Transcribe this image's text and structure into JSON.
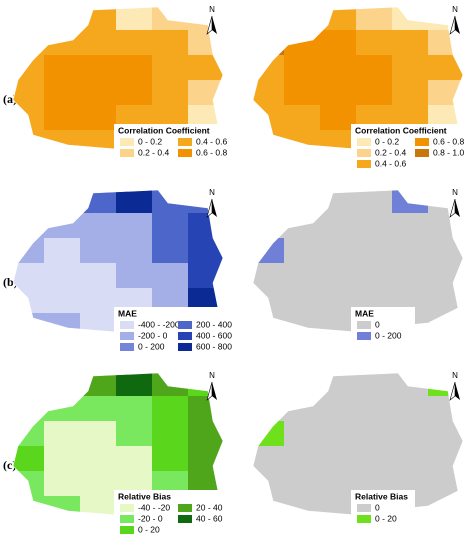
{
  "north": "N",
  "rows": [
    {
      "label": "(a)",
      "panels": [
        {
          "legend": {
            "title": "Correlation Coefficient",
            "items": [
              {
                "label": "0 - 0.2",
                "color": "#fde9b5"
              },
              {
                "label": "0.4 - 0.6",
                "color": "#f5a81e"
              },
              {
                "label": "0.2 - 0.4",
                "color": "#fbd38a"
              },
              {
                "label": "0.6 - 0.8",
                "color": "#f39200"
              }
            ]
          },
          "cells": [
            [
              1,
              1,
              1,
              0,
              2,
              2
            ],
            [
              1,
              1,
              1,
              1,
              1,
              2
            ],
            [
              1,
              3,
              3,
              3,
              1,
              1
            ],
            [
              1,
              3,
              3,
              3,
              1,
              2
            ],
            [
              1,
              3,
              3,
              1,
              1,
              0
            ],
            [
              1,
              1,
              1,
              1,
              1,
              1
            ]
          ]
        },
        {
          "legend": {
            "title": "Correlation Coefficient",
            "items": [
              {
                "label": "0 - 0.2",
                "color": "#fde9b5"
              },
              {
                "label": "0.6 - 0.8",
                "color": "#f39200"
              },
              {
                "label": "0.2 - 0.4",
                "color": "#fbd38a"
              },
              {
                "label": "0.8 - 1.0",
                "color": "#c8780a"
              },
              {
                "label": "0.4 - 0.6",
                "color": "#f5a81e"
              }
            ]
          },
          "cells": [
            [
              4,
              4,
              4,
              2,
              0,
              0
            ],
            [
              3,
              1,
              1,
              4,
              4,
              2
            ],
            [
              4,
              1,
              1,
              1,
              4,
              4
            ],
            [
              4,
              1,
              1,
              1,
              4,
              2
            ],
            [
              4,
              4,
              1,
              4,
              4,
              0
            ],
            [
              4,
              4,
              4,
              4,
              4,
              4
            ]
          ]
        }
      ]
    },
    {
      "label": "(b)",
      "panels": [
        {
          "legend": {
            "title": "MAE",
            "items": [
              {
                "label": "-400 - -200",
                "color": "#d8dcf5"
              },
              {
                "label": "200 - 400",
                "color": "#4d66c9"
              },
              {
                "label": "-200 - 0",
                "color": "#a3afe6"
              },
              {
                "label": "400 - 600",
                "color": "#2644b3"
              },
              {
                "label": "0 - 200",
                "color": "#7586d8"
              },
              {
                "label": "600 - 800",
                "color": "#0c2a94"
              }
            ]
          },
          "cells": [
            [
              4,
              4,
              1,
              5,
              1,
              1
            ],
            [
              2,
              2,
              2,
              2,
              1,
              3
            ],
            [
              2,
              0,
              2,
              2,
              1,
              3
            ],
            [
              0,
              0,
              0,
              2,
              2,
              3
            ],
            [
              0,
              0,
              0,
              0,
              2,
              5
            ],
            [
              2,
              2,
              0,
              0,
              2,
              5
            ]
          ]
        },
        {
          "legend": {
            "title": "MAE",
            "items": [
              {
                "label": "0",
                "color": "#cccccc"
              },
              {
                "label": "0 - 200",
                "color": "#6f80d6"
              }
            ]
          },
          "cells": [
            [
              0,
              0,
              0,
              0,
              1,
              0
            ],
            [
              0,
              0,
              0,
              0,
              0,
              0
            ],
            [
              1,
              0,
              0,
              0,
              0,
              0
            ],
            [
              0,
              0,
              0,
              0,
              0,
              0
            ],
            [
              0,
              0,
              0,
              0,
              0,
              0
            ],
            [
              0,
              0,
              0,
              0,
              0,
              0
            ]
          ]
        }
      ]
    },
    {
      "label": "(c)",
      "panels": [
        {
          "legend": {
            "title": "Relative Bias",
            "items": [
              {
                "label": "-40 - -20",
                "color": "#e6f8c6"
              },
              {
                "label": "20 - 40",
                "color": "#4fa61a"
              },
              {
                "label": "-20 - 0",
                "color": "#7ae85e"
              },
              {
                "label": "40 - 60",
                "color": "#0f6a0f"
              },
              {
                "label": "0 - 20",
                "color": "#5ad61c"
              }
            ]
          },
          "cells": [
            [
              4,
              4,
              1,
              3,
              1,
              4
            ],
            [
              2,
              2,
              2,
              2,
              4,
              1
            ],
            [
              2,
              0,
              0,
              2,
              4,
              1
            ],
            [
              4,
              0,
              0,
              0,
              4,
              1
            ],
            [
              2,
              0,
              0,
              0,
              2,
              1
            ],
            [
              2,
              2,
              0,
              0,
              2,
              1
            ]
          ]
        },
        {
          "legend": {
            "title": "Relative Bias",
            "items": [
              {
                "label": "0",
                "color": "#cccccc"
              },
              {
                "label": "0 - 20",
                "color": "#6ee01c"
              }
            ]
          },
          "cells": [
            [
              0,
              0,
              0,
              0,
              0,
              1
            ],
            [
              0,
              0,
              0,
              0,
              0,
              0
            ],
            [
              1,
              0,
              0,
              0,
              0,
              0
            ],
            [
              0,
              0,
              0,
              0,
              0,
              0
            ],
            [
              0,
              0,
              0,
              0,
              0,
              0
            ],
            [
              0,
              0,
              0,
              0,
              0,
              0
            ]
          ]
        }
      ]
    }
  ]
}
